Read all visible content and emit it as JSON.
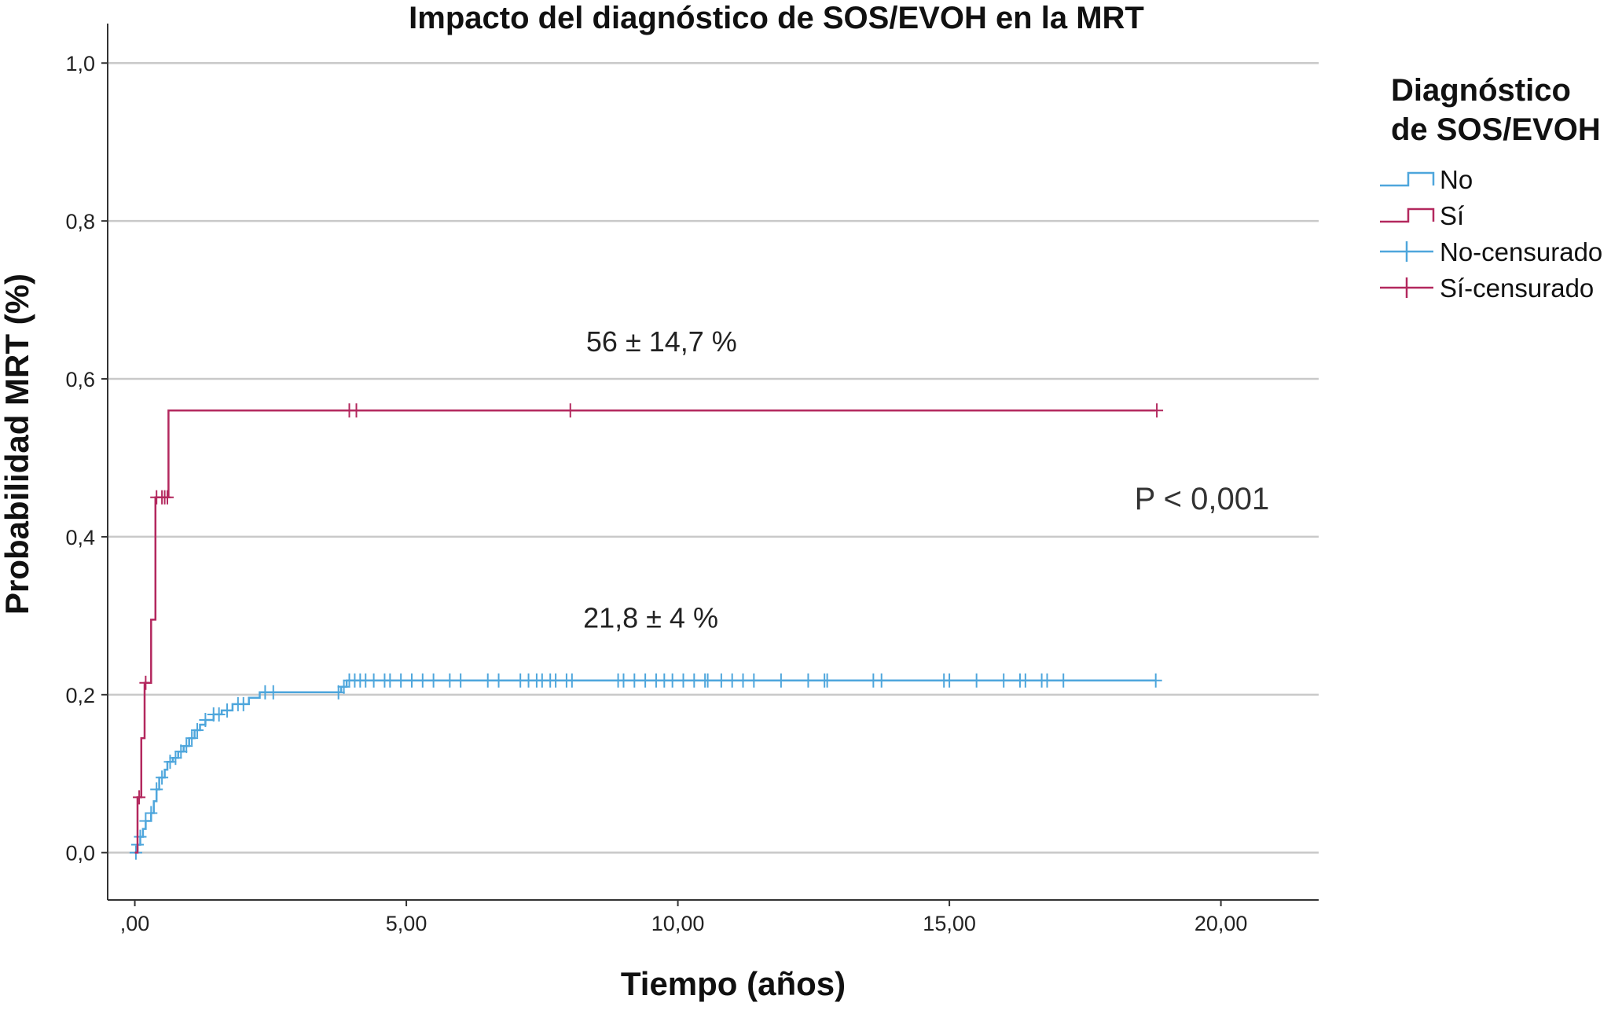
{
  "chart_data": {
    "type": "line",
    "title": "Impacto del diagnóstico de SOS/EVOH en la MRT",
    "xlabel": "Tiempo (años)",
    "ylabel": "Probabilidad MRT (%)",
    "xlim": [
      -0.5,
      21.8
    ],
    "ylim": [
      -0.06,
      1.05
    ],
    "x_ticks": [
      0,
      5,
      10,
      15,
      20
    ],
    "x_tick_labels": [
      ",00",
      "5,00",
      "10,00",
      "15,00",
      "20,00"
    ],
    "y_ticks": [
      0,
      0.2,
      0.4,
      0.6,
      0.8,
      1.0
    ],
    "y_tick_labels": [
      "0,0",
      "0,2",
      "0,4",
      "0,6",
      "0,8",
      "1,0"
    ],
    "grid": "horizontal",
    "legend_title": "Diagnóstico de SOS/EVOH",
    "legend_title_lines": [
      "Diagnóstico",
      "de SOS/EVOH"
    ],
    "legend_position": "right",
    "legend_entries": [
      {
        "label": "No",
        "symbol": "step",
        "color": "#4ea6dc"
      },
      {
        "label": "Sí",
        "symbol": "step",
        "color": "#b3285e"
      },
      {
        "label": "No-censurado",
        "symbol": "cross",
        "color": "#4ea6dc"
      },
      {
        "label": "Sí-censurado",
        "symbol": "cross",
        "color": "#b3285e"
      }
    ],
    "series": [
      {
        "name": "No",
        "color": "#4ea6dc",
        "step_points": [
          [
            0,
            0
          ],
          [
            0.05,
            0.01
          ],
          [
            0.1,
            0.02
          ],
          [
            0.15,
            0.03
          ],
          [
            0.2,
            0.04
          ],
          [
            0.3,
            0.05
          ],
          [
            0.35,
            0.065
          ],
          [
            0.4,
            0.08
          ],
          [
            0.45,
            0.095
          ],
          [
            0.55,
            0.105
          ],
          [
            0.6,
            0.115
          ],
          [
            0.7,
            0.12
          ],
          [
            0.8,
            0.128
          ],
          [
            0.9,
            0.135
          ],
          [
            1.0,
            0.145
          ],
          [
            1.1,
            0.155
          ],
          [
            1.2,
            0.162
          ],
          [
            1.3,
            0.168
          ],
          [
            1.45,
            0.175
          ],
          [
            1.6,
            0.18
          ],
          [
            1.8,
            0.188
          ],
          [
            2.1,
            0.196
          ],
          [
            2.3,
            0.203
          ],
          [
            3.8,
            0.21
          ],
          [
            3.9,
            0.218
          ],
          [
            18.8,
            0.218
          ]
        ],
        "censored": [
          0.02,
          0.05,
          0.1,
          0.2,
          0.3,
          0.4,
          0.5,
          0.65,
          0.75,
          0.85,
          0.95,
          1.05,
          1.15,
          1.3,
          1.45,
          1.55,
          1.7,
          1.9,
          2.0,
          2.4,
          2.55,
          3.75,
          3.85,
          3.95,
          4.05,
          4.15,
          4.25,
          4.4,
          4.6,
          4.7,
          4.9,
          5.1,
          5.3,
          5.5,
          5.8,
          6.0,
          6.5,
          6.7,
          7.1,
          7.25,
          7.4,
          7.5,
          7.65,
          7.75,
          7.95,
          8.05,
          8.9,
          9.0,
          9.2,
          9.4,
          9.6,
          9.75,
          9.9,
          10.1,
          10.3,
          10.5,
          10.55,
          10.8,
          11.0,
          11.2,
          11.4,
          11.9,
          12.4,
          12.7,
          12.75,
          13.6,
          13.75,
          14.9,
          15.0,
          15.5,
          16.0,
          16.3,
          16.4,
          16.7,
          16.8,
          17.1,
          18.8
        ]
      },
      {
        "name": "Sí",
        "color": "#b3285e",
        "step_points": [
          [
            0,
            0
          ],
          [
            0.05,
            0.07
          ],
          [
            0.12,
            0.145
          ],
          [
            0.18,
            0.215
          ],
          [
            0.3,
            0.295
          ],
          [
            0.38,
            0.45
          ],
          [
            0.58,
            0.45
          ],
          [
            0.62,
            0.56
          ],
          [
            18.8,
            0.56
          ]
        ],
        "censored": [
          0.08,
          0.2,
          0.4,
          0.5,
          0.55,
          0.6,
          3.95,
          4.08,
          8.02,
          18.82
        ]
      }
    ],
    "annotations": [
      {
        "text": "56 ± 14,7 %",
        "x": 9.7,
        "y": 0.635
      },
      {
        "text": "21,8 ± 4 %",
        "x": 9.5,
        "y": 0.285
      },
      {
        "text": "P < 0,001",
        "x": 19.65,
        "y": 0.435
      }
    ]
  }
}
